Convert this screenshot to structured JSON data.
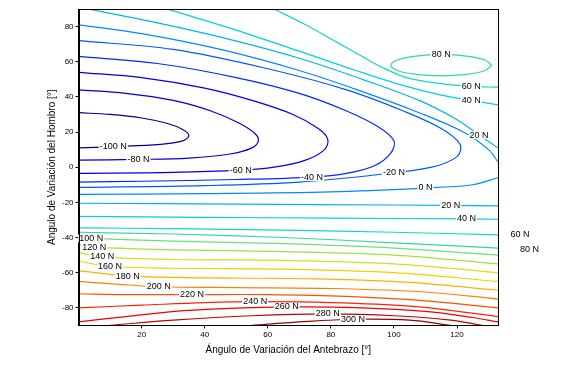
{
  "chart_data": {
    "type": "contour",
    "xlabel": "Ángulo de Variación del Antebrazo [°]",
    "ylabel": "Angulo de Variación del Hombro [°]",
    "xlim": [
      0,
      133
    ],
    "ylim": [
      -90,
      90
    ],
    "xticks": [
      20,
      40,
      60,
      80,
      100,
      120
    ],
    "yticks": [
      -80,
      -60,
      -40,
      -20,
      0,
      20,
      40,
      60,
      80
    ],
    "grid": false,
    "series": [
      {
        "name": "-100 N",
        "color": "#00008f",
        "segments": [
          {
            "x": [
              0,
              10,
              20,
              28,
              33,
              35,
              33,
              26,
              11,
              0
            ],
            "y": [
              31,
              30,
              28,
              25,
              21.5,
              18,
              15,
              13,
              11.7,
              11
            ]
          }
        ],
        "label_points": [
          {
            "x": 11,
            "y": 11.7
          }
        ]
      },
      {
        "name": "-80 N",
        "color": "#0000c8",
        "segments": [
          {
            "x": [
              0,
              15,
              30,
              42,
              51,
              56,
              57,
              55,
              48,
              35,
              19,
              0
            ],
            "y": [
              44,
              42,
              38,
              32,
              25,
              19,
              15,
              11,
              7.5,
              5.2,
              4.4,
              4
            ]
          }
        ],
        "label_points": [
          {
            "x": 19,
            "y": 4.4
          }
        ]
      },
      {
        "name": "-60 N",
        "color": "#0000f0",
        "segments": [
          {
            "x": [
              0,
              20,
              40,
              55,
              68,
              76,
              79,
              78,
              72,
              62,
              51.4,
              30,
              0
            ],
            "y": [
              54,
              51,
              45,
              38,
              30,
              22,
              16,
              10,
              4,
              0,
              -1.7,
              -3,
              -3.5
            ]
          }
        ],
        "label_points": [
          {
            "x": 51.4,
            "y": -1.7
          }
        ]
      },
      {
        "name": "-40 N",
        "color": "#0028ff",
        "segments": [
          {
            "x": [
              0,
              25,
              50,
              70,
              85,
              95,
              100,
              99,
              94,
              85,
              74,
              50,
              20,
              0
            ],
            "y": [
              63,
              59,
              51,
              42,
              32,
              23,
              15,
              8,
              1,
              -3.5,
              -5.6,
              -7,
              -8,
              -8.5
            ]
          }
        ],
        "label_points": [
          {
            "x": 74,
            "y": -5.6
          }
        ]
      },
      {
        "name": "-20 N",
        "color": "#0058ff",
        "segments": [
          {
            "x": [
              0,
              30,
              60,
              85,
              103,
              115,
              121,
              120,
              112,
              96,
              70,
              40,
              0
            ],
            "y": [
              72,
              67,
              56,
              44,
              32,
              22,
              13,
              6,
              0,
              -4,
              -8.5,
              -10.5,
              -11.5
            ]
          }
        ],
        "label_points": [
          {
            "x": 100,
            "y": -3
          }
        ]
      },
      {
        "name": "0 N",
        "color": "#0088ff",
        "segments": [
          {
            "x": [
              0,
              20,
              45,
              70,
              90,
              108,
              122,
              130,
              133
            ],
            "y": [
              81,
              76,
              67,
              55,
              43,
              31,
              20,
              10,
              3
            ]
          },
          {
            "x": [
              133,
              125,
              108,
              80,
              40,
              0
            ],
            "y": [
              -6,
              -10,
              -12,
              -14,
              -15,
              -15.5
            ]
          }
        ],
        "label_points": [
          {
            "x": 110,
            "y": -11.8
          }
        ]
      },
      {
        "name": "20 N",
        "color": "#00b4f0",
        "segments": [
          {
            "x": [
              3,
              20,
              45,
              70,
              90,
              108,
              120,
              128,
              133
            ],
            "y": [
              90,
              84,
              74,
              62,
              50,
              38,
              27,
              17,
              11
            ]
          },
          {
            "x": [
              0,
              50,
              100,
              133
            ],
            "y": [
              -20.5,
              -21,
              -21.5,
              -22
            ]
          }
        ],
        "label_points": [
          {
            "x": 127,
            "y": 18.3
          },
          {
            "x": 118,
            "y": -21.7
          }
        ]
      },
      {
        "name": "40 N",
        "color": "#00d0e0",
        "segments": [
          {
            "x": [
              28,
              50,
              70,
              88,
              102,
              115,
              124.5,
              133
            ],
            "y": [
              90,
              78,
              66,
              55,
              47,
              41,
              38,
              35.5
            ]
          },
          {
            "x": [
              0,
              40,
              80,
              123,
              133
            ],
            "y": [
              -28,
              -28.5,
              -29,
              -29.4,
              -29.6
            ]
          }
        ],
        "label_points": [
          {
            "x": 124.5,
            "y": 38
          },
          {
            "x": 123,
            "y": -29.4
          }
        ]
      },
      {
        "name": "60 N",
        "color": "#10d8c8",
        "segments": [
          {
            "x": [
              62,
              72,
              82,
              90,
              96,
              104,
              115,
              124.5,
              133
            ],
            "y": [
              90,
              81,
              71,
              63,
              57,
              51,
              47.5,
              46,
              45.5
            ]
          },
          {
            "x": [
              0,
              30,
              65,
              100,
              133
            ],
            "y": [
              -34.5,
              -35,
              -35.8,
              -37,
              -38.5
            ]
          }
        ],
        "label_points": [
          {
            "x": 124.5,
            "y": 46
          },
          {
            "x": 140,
            "y": -38.5
          }
        ]
      },
      {
        "name": "80 N",
        "color": "#30d8a0",
        "segments": [
          {
            "x": [
              131,
              128.9,
              123,
              115,
              107,
              101.1,
              99,
              101.1,
              107,
              115,
              123,
              128.9,
              131
            ],
            "y": [
              58,
              61,
              63.2,
              64,
              63.2,
              61,
              58,
              55,
              52.8,
              52,
              52.8,
              55,
              58
            ]
          },
          {
            "x": [
              0,
              30,
              65,
              100,
              133
            ],
            "y": [
              -37,
              -38,
              -40,
              -43,
              -46
            ]
          }
        ],
        "label_points": [
          {
            "x": 115,
            "y": 64
          },
          {
            "x": 143,
            "y": -47
          }
        ]
      },
      {
        "name": "100 N",
        "color": "#70e070",
        "segments": [
          {
            "x": [
              0,
              4,
              30,
              65,
              100,
              133
            ],
            "y": [
              -40,
              -40.5,
              -42,
              -43.5,
              -46,
              -50
            ]
          }
        ],
        "label_points": [
          {
            "x": 4,
            "y": -40.5
          }
        ]
      },
      {
        "name": "120 N",
        "color": "#a0e040",
        "segments": [
          {
            "x": [
              0,
              5,
              30,
              65,
              100,
              133
            ],
            "y": [
              -44,
              -45.5,
              -47,
              -48,
              -50,
              -55
            ]
          }
        ],
        "label_points": [
          {
            "x": 5,
            "y": -45.5
          }
        ]
      },
      {
        "name": "140 N",
        "color": "#d0e020",
        "segments": [
          {
            "x": [
              0,
              7.5,
              30,
              65,
              100,
              133
            ],
            "y": [
              -48.5,
              -51,
              -52.5,
              -53,
              -55,
              -60
            ]
          }
        ],
        "label_points": [
          {
            "x": 7.5,
            "y": -51
          }
        ]
      },
      {
        "name": "160 N",
        "color": "#f0d000",
        "segments": [
          {
            "x": [
              0,
              10,
              30,
              65,
              100,
              133
            ],
            "y": [
              -53.5,
              -56.5,
              -57.5,
              -58,
              -60,
              -65
            ]
          }
        ],
        "label_points": [
          {
            "x": 10,
            "y": -56.5
          }
        ]
      },
      {
        "name": "180 N",
        "color": "#ffb000",
        "segments": [
          {
            "x": [
              0,
              8,
              15.6,
              40,
              75,
              105,
              133
            ],
            "y": [
              -59,
              -60.5,
              -62,
              -63,
              -63.5,
              -65.5,
              -70
            ]
          }
        ],
        "label_points": [
          {
            "x": 15.6,
            "y": -62
          }
        ]
      },
      {
        "name": "200 N",
        "color": "#ff8000",
        "segments": [
          {
            "x": [
              0,
              12,
              25.4,
              50,
              80,
              110,
              133
            ],
            "y": [
              -65,
              -66.5,
              -68,
              -68.5,
              -69,
              -71,
              -75
            ]
          }
        ],
        "label_points": [
          {
            "x": 25.4,
            "y": -68
          }
        ]
      },
      {
        "name": "220 N",
        "color": "#ff5000",
        "segments": [
          {
            "x": [
              0,
              15,
              36,
              60,
              85,
              110,
              133
            ],
            "y": [
              -72,
              -72.5,
              -72.5,
              -72.5,
              -73.5,
              -76,
              -80
            ]
          }
        ],
        "label_points": [
          {
            "x": 36,
            "y": -72.5
          }
        ]
      },
      {
        "name": "240 N",
        "color": "#ff2000",
        "segments": [
          {
            "x": [
              0,
              20,
              40,
              56,
              80,
              105,
              125,
              133
            ],
            "y": [
              -80,
              -78.5,
              -77,
              -76.5,
              -77,
              -79,
              -83,
              -85
            ]
          }
        ],
        "label_points": [
          {
            "x": 56,
            "y": -76.5
          }
        ]
      },
      {
        "name": "260 N",
        "color": "#f00000",
        "segments": [
          {
            "x": [
              0,
              15,
              35,
              66,
              90,
              110,
              125,
              133
            ],
            "y": [
              -88,
              -85,
              -81.5,
              -79.5,
              -80,
              -82,
              -85.5,
              -88
            ]
          }
        ],
        "label_points": [
          {
            "x": 66,
            "y": -79.5
          }
        ]
      },
      {
        "name": "280 N",
        "color": "#c00000",
        "segments": [
          {
            "x": [
              10,
              30,
              55,
              79,
              100,
              118,
              128
            ],
            "y": [
              -90,
              -87,
              -84.5,
              -83.5,
              -84.5,
              -87,
              -90
            ]
          }
        ],
        "label_points": [
          {
            "x": 79,
            "y": -83.5
          }
        ]
      },
      {
        "name": "300 N",
        "color": "#900000",
        "segments": [
          {
            "x": [
              55,
              70,
              87,
              105,
              118
            ],
            "y": [
              -90,
              -88,
              -86.5,
              -87,
              -90
            ]
          }
        ],
        "label_points": [
          {
            "x": 87,
            "y": -86.5
          }
        ]
      }
    ]
  }
}
